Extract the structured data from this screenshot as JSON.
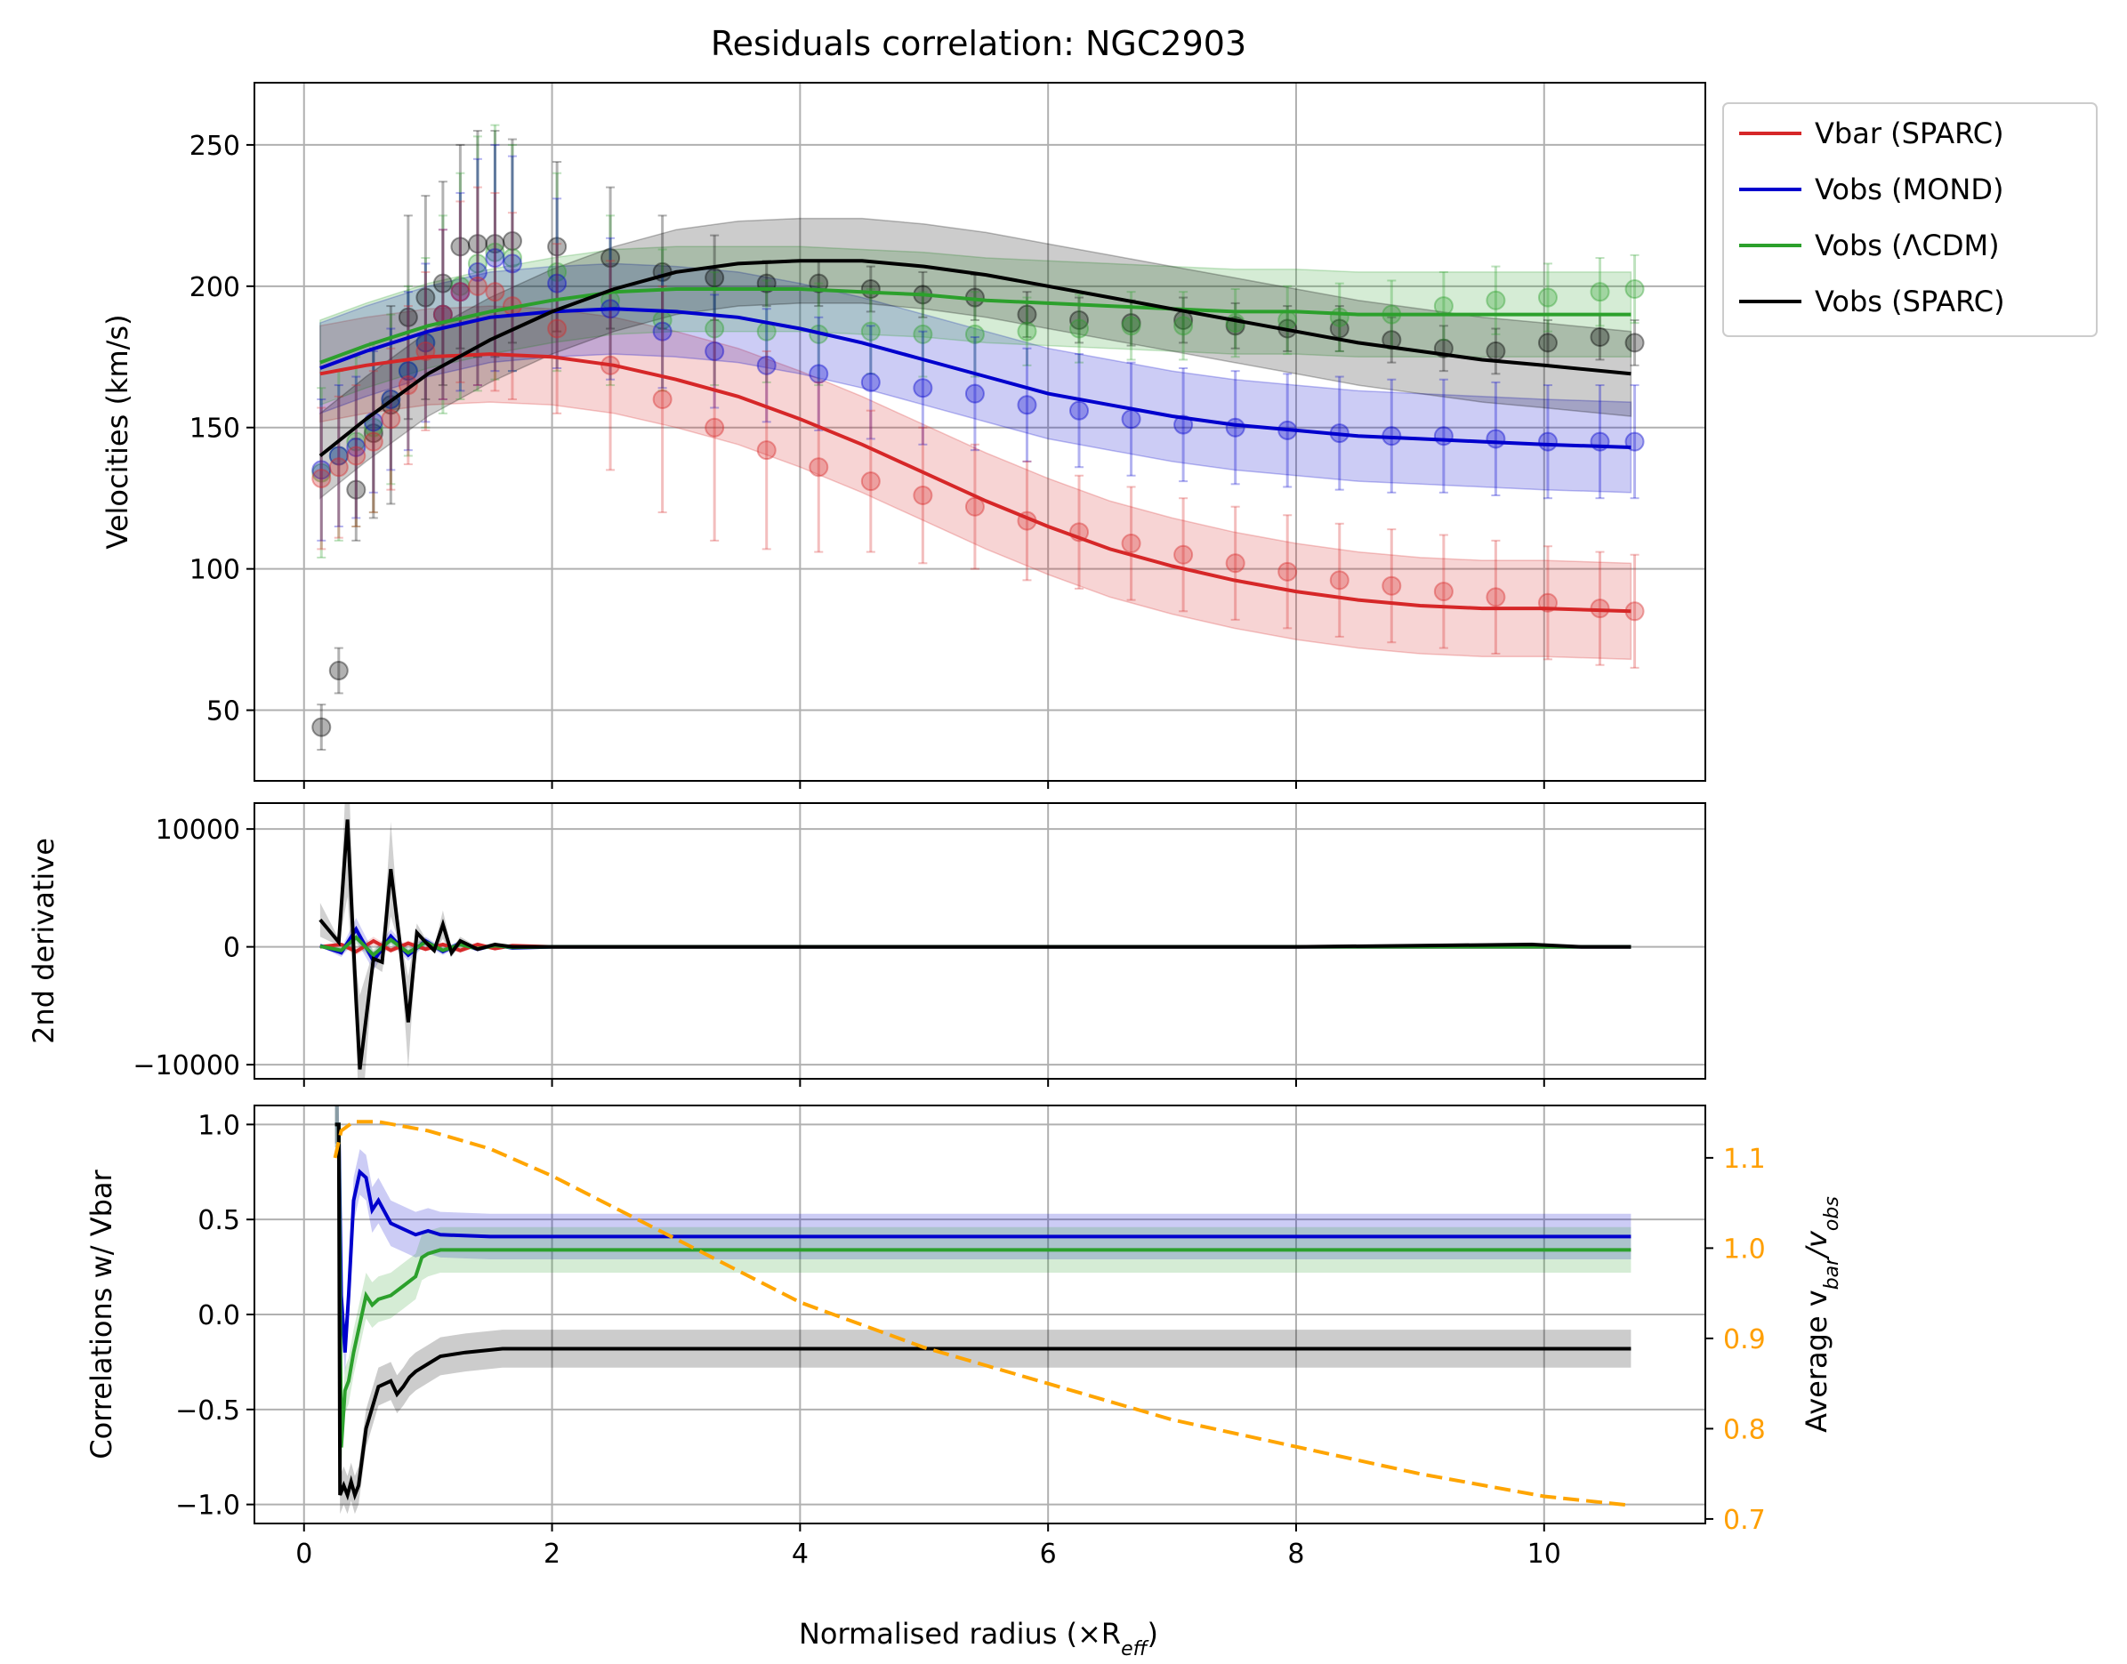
{
  "title": "Residuals correlation: NGC2903",
  "colors": {
    "vbar": "#d62728",
    "mond": "#0000cd",
    "lcdm": "#2ca02c",
    "sparc": "#000000",
    "ratio": "#ffa500",
    "grid": "#b0b0b0"
  },
  "legend": [
    {
      "label": "Vbar (SPARC)",
      "color": "#d62728"
    },
    {
      "label": "Vobs (MOND)",
      "color": "#0000cd"
    },
    {
      "label": "Vobs (ΛCDM)",
      "color": "#2ca02c"
    },
    {
      "label": "Vobs (SPARC)",
      "color": "#000000"
    }
  ],
  "xlabel": "Normalised radius (×R",
  "xlabel_sub": "eff",
  "xlabel_close": ")",
  "chart_data": [
    {
      "type": "scatter",
      "panel": "velocities",
      "ylabel": "Velocities (km/s)",
      "xlim": [
        -0.4,
        11.3
      ],
      "ylim": [
        25,
        272
      ],
      "xticks": [
        0,
        2,
        4,
        6,
        8,
        10
      ],
      "yticks": [
        50,
        100,
        150,
        200,
        250
      ],
      "grid": true,
      "legend_position": "outside-top-right",
      "curves": [
        {
          "name": "Vbar (SPARC)",
          "color": "#d62728",
          "band": 17,
          "x": [
            0.13,
            0.5,
            1.0,
            1.5,
            2.0,
            2.5,
            3.0,
            3.5,
            4.0,
            4.5,
            5.0,
            5.5,
            6.0,
            6.5,
            7.0,
            7.5,
            8.0,
            8.5,
            9.0,
            9.5,
            10.0,
            10.7
          ],
          "y": [
            169,
            172,
            175,
            176,
            175,
            172,
            167,
            161,
            153,
            144,
            134,
            124,
            115,
            107,
            101,
            96,
            92,
            89,
            87,
            86,
            86,
            85
          ]
        },
        {
          "name": "Vobs (MOND)",
          "color": "#0000cd",
          "band": 16,
          "x": [
            0.13,
            0.5,
            1.0,
            1.5,
            2.0,
            2.5,
            3.0,
            3.5,
            4.0,
            4.5,
            5.0,
            5.5,
            6.0,
            6.5,
            7.0,
            7.5,
            8.0,
            8.5,
            9.0,
            9.5,
            10.0,
            10.7
          ],
          "y": [
            171,
            177,
            184,
            189,
            191,
            192,
            191,
            189,
            185,
            180,
            174,
            168,
            162,
            158,
            154,
            151,
            149,
            147,
            146,
            145,
            144,
            143
          ]
        },
        {
          "name": "Vobs (ΛCDM)",
          "color": "#2ca02c",
          "band": 15,
          "x": [
            0.13,
            0.5,
            1.0,
            1.5,
            2.0,
            2.5,
            3.0,
            3.5,
            4.0,
            4.5,
            5.0,
            5.5,
            6.0,
            6.5,
            7.0,
            7.5,
            8.0,
            8.5,
            9.0,
            9.5,
            10.0,
            10.7
          ],
          "y": [
            173,
            179,
            186,
            191,
            195,
            198,
            199,
            199,
            199,
            198,
            197,
            195,
            194,
            193,
            192,
            191,
            191,
            190,
            190,
            190,
            190,
            190
          ]
        },
        {
          "name": "Vobs (SPARC)",
          "color": "#000000",
          "band": 15,
          "x": [
            0.13,
            0.5,
            1.0,
            1.5,
            2.0,
            2.5,
            3.0,
            3.5,
            4.0,
            4.5,
            5.0,
            5.5,
            6.0,
            6.5,
            7.0,
            7.5,
            8.0,
            8.5,
            9.0,
            9.5,
            10.0,
            10.7
          ],
          "y": [
            140,
            153,
            169,
            181,
            191,
            199,
            205,
            208,
            209,
            209,
            207,
            204,
            200,
            196,
            192,
            188,
            184,
            180,
            177,
            174,
            172,
            169
          ]
        }
      ],
      "points": [
        {
          "name": "Vobs (SPARC)",
          "color": "#000000",
          "x": [
            0.14,
            0.28,
            0.42,
            0.56,
            0.7,
            0.84,
            0.98,
            1.12,
            1.26,
            1.4,
            1.54,
            1.68,
            2.04,
            2.47,
            2.89,
            3.31,
            3.73,
            4.15,
            4.57,
            4.99,
            5.41,
            5.83,
            6.25,
            6.67,
            7.09,
            7.51,
            7.93,
            8.35,
            8.77,
            9.19,
            9.61,
            10.03,
            10.45,
            10.73
          ],
          "y": [
            44,
            64,
            128,
            148,
            158,
            189,
            196,
            201,
            214,
            215,
            215,
            216,
            214,
            210,
            205,
            203,
            201,
            201,
            199,
            197,
            196,
            190,
            188,
            187,
            188,
            186,
            185,
            185,
            181,
            178,
            177,
            180,
            182,
            180
          ],
          "err": [
            8,
            8,
            18,
            30,
            35,
            36,
            36,
            36,
            36,
            40,
            40,
            36,
            30,
            25,
            20,
            15,
            8,
            8,
            8,
            8,
            8,
            8,
            8,
            8,
            8,
            8,
            8,
            8,
            8,
            8,
            8,
            8,
            8,
            8
          ]
        },
        {
          "name": "Vobs (ΛCDM)",
          "color": "#2ca02c",
          "x": [
            0.14,
            0.28,
            0.42,
            0.56,
            0.7,
            0.84,
            0.98,
            1.12,
            1.26,
            1.4,
            1.54,
            1.68,
            2.04,
            2.47,
            2.89,
            3.31,
            3.73,
            4.15,
            4.57,
            4.99,
            5.41,
            5.83,
            6.25,
            6.67,
            7.09,
            7.51,
            7.93,
            8.35,
            8.77,
            9.19,
            9.61,
            10.03,
            10.45,
            10.73
          ],
          "y": [
            134,
            140,
            145,
            150,
            160,
            170,
            180,
            190,
            200,
            208,
            212,
            210,
            205,
            195,
            188,
            185,
            184,
            183,
            184,
            183,
            183,
            184,
            185,
            186,
            186,
            187,
            188,
            189,
            190,
            193,
            195,
            196,
            198,
            199
          ],
          "err": [
            30,
            30,
            30,
            30,
            30,
            30,
            30,
            35,
            40,
            45,
            45,
            40,
            35,
            30,
            25,
            20,
            18,
            18,
            15,
            15,
            15,
            12,
            12,
            12,
            12,
            12,
            12,
            12,
            12,
            12,
            12,
            12,
            12,
            12
          ]
        },
        {
          "name": "Vobs (MOND)",
          "color": "#0000cd",
          "x": [
            0.14,
            0.28,
            0.42,
            0.56,
            0.7,
            0.84,
            0.98,
            1.12,
            1.26,
            1.4,
            1.54,
            1.68,
            2.04,
            2.47,
            2.89,
            3.31,
            3.73,
            4.15,
            4.57,
            4.99,
            5.41,
            5.83,
            6.25,
            6.67,
            7.09,
            7.51,
            7.93,
            8.35,
            8.77,
            9.19,
            9.61,
            10.03,
            10.45,
            10.73
          ],
          "y": [
            135,
            140,
            143,
            152,
            160,
            170,
            180,
            190,
            198,
            205,
            210,
            208,
            201,
            192,
            184,
            177,
            172,
            169,
            166,
            164,
            162,
            158,
            156,
            153,
            151,
            150,
            149,
            148,
            147,
            147,
            146,
            145,
            145,
            145
          ],
          "err": [
            25,
            25,
            25,
            25,
            25,
            28,
            28,
            30,
            35,
            40,
            40,
            38,
            30,
            25,
            20,
            20,
            20,
            20,
            20,
            20,
            20,
            20,
            20,
            20,
            20,
            20,
            20,
            20,
            20,
            20,
            20,
            20,
            20,
            20
          ]
        },
        {
          "name": "Vbar (SPARC)",
          "color": "#d62728",
          "x": [
            0.14,
            0.28,
            0.42,
            0.56,
            0.7,
            0.84,
            0.98,
            1.12,
            1.26,
            1.4,
            1.54,
            1.68,
            2.04,
            2.47,
            2.89,
            3.31,
            3.73,
            4.15,
            4.57,
            4.99,
            5.41,
            5.83,
            6.25,
            6.67,
            7.09,
            7.51,
            7.93,
            8.35,
            8.77,
            9.19,
            9.61,
            10.03,
            10.45,
            10.73
          ],
          "y": [
            132,
            136,
            140,
            145,
            153,
            165,
            177,
            190,
            198,
            200,
            198,
            193,
            185,
            172,
            160,
            150,
            142,
            136,
            131,
            126,
            122,
            117,
            113,
            109,
            105,
            102,
            99,
            96,
            94,
            92,
            90,
            88,
            86,
            85
          ],
          "err": [
            25,
            25,
            25,
            25,
            25,
            28,
            28,
            30,
            32,
            35,
            35,
            33,
            30,
            37,
            40,
            40,
            35,
            30,
            25,
            24,
            22,
            21,
            20,
            20,
            20,
            20,
            20,
            20,
            20,
            20,
            20,
            20,
            20,
            20
          ]
        }
      ]
    },
    {
      "type": "line",
      "panel": "second-derivative",
      "ylabel": "2nd derivative",
      "xlim": [
        -0.4,
        11.3
      ],
      "ylim": [
        -11200,
        12200
      ],
      "yticks": [
        -10000,
        0,
        10000
      ],
      "grid": true,
      "series": [
        {
          "name": "Vbar (SPARC)",
          "color": "#d62728",
          "x": [
            0.13,
            0.3,
            0.42,
            0.56,
            0.7,
            0.84,
            0.98,
            1.12,
            1.26,
            1.4,
            1.54,
            1.68,
            2.0,
            4.0,
            6.0,
            8.0,
            10.7
          ],
          "y": [
            0,
            200,
            -400,
            500,
            -300,
            300,
            -200,
            200,
            -300,
            200,
            -150,
            100,
            0,
            0,
            0,
            0,
            0
          ]
        },
        {
          "name": "Vobs (MOND)",
          "color": "#0000cd",
          "x": [
            0.13,
            0.3,
            0.42,
            0.56,
            0.7,
            0.84,
            0.98,
            1.12,
            1.26,
            1.4,
            1.54,
            1.68,
            2.0,
            4.0,
            6.0,
            8.0,
            10.7
          ],
          "y": [
            100,
            -500,
            1500,
            -1200,
            900,
            -700,
            500,
            -400,
            300,
            -200,
            150,
            -100,
            0,
            0,
            0,
            0,
            0
          ]
        },
        {
          "name": "Vobs (ΛCDM)",
          "color": "#2ca02c",
          "x": [
            0.13,
            0.3,
            0.42,
            0.56,
            0.7,
            0.84,
            0.98,
            1.12,
            1.26,
            1.4,
            1.54,
            1.68,
            2.0,
            4.0,
            6.0,
            8.0,
            10.7
          ],
          "y": [
            50,
            -300,
            800,
            -700,
            600,
            -500,
            400,
            -300,
            200,
            -150,
            100,
            -50,
            0,
            0,
            0,
            0,
            0
          ]
        },
        {
          "name": "Vobs (SPARC)",
          "color": "#000000",
          "x": [
            0.13,
            0.28,
            0.35,
            0.42,
            0.45,
            0.56,
            0.63,
            0.7,
            0.77,
            0.84,
            0.91,
            0.98,
            1.05,
            1.12,
            1.19,
            1.26,
            1.4,
            1.54,
            1.68,
            2.0,
            4.0,
            6.0,
            8.0,
            9.9,
            10.3,
            10.7
          ],
          "y": [
            2300,
            400,
            10800,
            -4500,
            -10400,
            -1000,
            -1300,
            6600,
            600,
            -6400,
            1200,
            400,
            -300,
            1900,
            -500,
            500,
            -200,
            200,
            0,
            0,
            0,
            0,
            0,
            200,
            0,
            0
          ]
        }
      ]
    },
    {
      "type": "line",
      "panel": "correlations",
      "ylabel": "Correlations w/ Vbar",
      "ylabel_right": "Average v",
      "ylabel_right_sub1": "bar",
      "ylabel_right_mid": "/v",
      "ylabel_right_sub2": "obs",
      "xlim": [
        -0.4,
        11.3
      ],
      "ylim": [
        -1.1,
        1.1
      ],
      "yticks": [
        -1.0,
        -0.5,
        0.0,
        0.5,
        1.0
      ],
      "y2lim": [
        0.695,
        1.158
      ],
      "y2ticks": [
        0.7,
        0.8,
        0.9,
        1.0,
        1.1
      ],
      "grid": true,
      "series": [
        {
          "name": "Vobs (MOND)",
          "color": "#0000cd",
          "band": 0.12,
          "x": [
            0.25,
            0.28,
            0.3,
            0.33,
            0.36,
            0.4,
            0.45,
            0.5,
            0.55,
            0.6,
            0.7,
            0.8,
            0.9,
            1.0,
            1.1,
            1.5,
            2.0,
            5.0,
            10.7
          ],
          "y": [
            1.0,
            1.0,
            0.1,
            -0.2,
            0.1,
            0.6,
            0.75,
            0.72,
            0.55,
            0.6,
            0.48,
            0.45,
            0.42,
            0.44,
            0.42,
            0.41,
            0.41,
            0.41,
            0.41
          ]
        },
        {
          "name": "Vobs (ΛCDM)",
          "color": "#2ca02c",
          "band": 0.12,
          "x": [
            0.25,
            0.28,
            0.3,
            0.33,
            0.36,
            0.4,
            0.45,
            0.5,
            0.55,
            0.6,
            0.7,
            0.8,
            0.9,
            0.95,
            1.0,
            1.1,
            1.5,
            2.0,
            5.0,
            10.7
          ],
          "y": [
            1.0,
            1.0,
            -0.7,
            -0.4,
            -0.35,
            -0.2,
            -0.05,
            0.1,
            0.05,
            0.08,
            0.1,
            0.15,
            0.2,
            0.3,
            0.32,
            0.34,
            0.34,
            0.34,
            0.34,
            0.34
          ]
        },
        {
          "name": "Vobs (SPARC)",
          "color": "#000000",
          "band": 0.1,
          "x": [
            0.25,
            0.28,
            0.29,
            0.32,
            0.35,
            0.38,
            0.41,
            0.44,
            0.5,
            0.6,
            0.7,
            0.75,
            0.8,
            0.85,
            0.9,
            1.0,
            1.1,
            1.3,
            1.6,
            2.0,
            5.0,
            10.7
          ],
          "y": [
            1.0,
            1.0,
            -0.95,
            -0.9,
            -0.95,
            -0.88,
            -0.95,
            -0.9,
            -0.6,
            -0.38,
            -0.35,
            -0.42,
            -0.38,
            -0.33,
            -0.3,
            -0.26,
            -0.22,
            -0.2,
            -0.18,
            -0.18,
            -0.18,
            -0.18
          ]
        },
        {
          "name": "ratio",
          "color": "#ffa500",
          "dashed": true,
          "axis": "right",
          "x": [
            0.25,
            0.3,
            0.4,
            0.6,
            1.0,
            1.5,
            2.0,
            3.0,
            4.0,
            5.0,
            6.0,
            7.0,
            8.0,
            9.0,
            10.0,
            10.7
          ],
          "y": [
            1.1,
            1.13,
            1.14,
            1.14,
            1.13,
            1.11,
            1.08,
            1.01,
            0.94,
            0.89,
            0.85,
            0.81,
            0.78,
            0.75,
            0.725,
            0.715
          ]
        }
      ]
    }
  ]
}
